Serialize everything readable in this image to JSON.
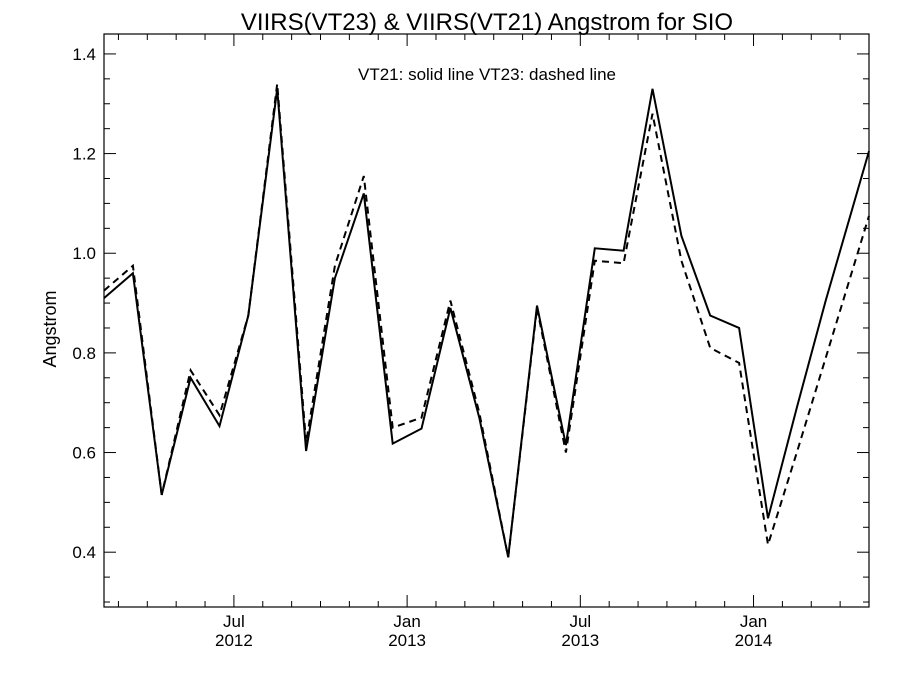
{
  "chart_data": {
    "type": "line",
    "title": "VIIRS(VT23) & VIIRS(VT21)  Angstrom for SIO",
    "annotation": "VT21: solid line   VT23: dashed line",
    "xlabel": "",
    "ylabel": "Angstrom",
    "ylim": [
      0.29,
      1.44
    ],
    "yticks": [
      0.4,
      0.6,
      0.8,
      1.0,
      1.2,
      1.4
    ],
    "ytick_labels": [
      "0.4",
      "0.6",
      "0.8",
      "1.0",
      "1.2",
      "1.4"
    ],
    "xticks": [
      {
        "pos": 4.5,
        "month": "Jul",
        "year": "2012"
      },
      {
        "pos": 10.5,
        "month": "Jan",
        "year": "2013"
      },
      {
        "pos": 16.5,
        "month": "Jul",
        "year": "2013"
      },
      {
        "pos": 22.5,
        "month": "Jan",
        "year": "2014"
      }
    ],
    "xlim": [
      0,
      26.5
    ],
    "x": [
      0,
      1,
      2,
      3,
      4,
      5,
      6,
      7,
      8,
      9,
      10,
      11,
      12,
      13,
      14,
      15,
      16,
      17,
      18,
      19,
      20,
      21,
      22,
      23,
      24,
      25,
      26.5
    ],
    "series": [
      {
        "name": "VT21",
        "style": "solid",
        "values": [
          0.91,
          0.96,
          0.515,
          0.75,
          0.653,
          0.875,
          1.33,
          0.603,
          0.95,
          1.12,
          0.618,
          0.648,
          0.89,
          0.67,
          0.39,
          0.895,
          0.615,
          1.01,
          1.005,
          1.33,
          1.035,
          0.875,
          0.85,
          0.468,
          0.69,
          0.905,
          1.205
        ]
      },
      {
        "name": "VT23",
        "style": "dashed",
        "values": [
          0.925,
          0.975,
          0.515,
          0.765,
          0.675,
          0.875,
          1.34,
          0.62,
          0.975,
          1.155,
          0.65,
          0.67,
          0.905,
          0.68,
          0.39,
          0.89,
          0.6,
          0.985,
          0.98,
          1.28,
          0.985,
          0.81,
          0.78,
          0.415,
          0.6,
          0.79,
          1.075
        ]
      }
    ],
    "grid": false,
    "colors": {
      "line": "#000000",
      "background": "#ffffff"
    }
  }
}
